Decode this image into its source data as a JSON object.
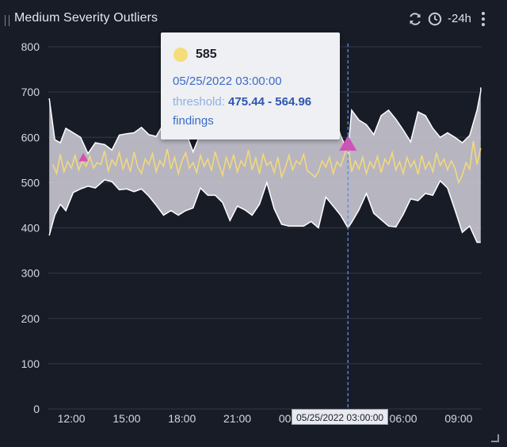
{
  "header": {
    "title": "Medium Severity Outliers",
    "refresh_icon": "refresh-icon",
    "clock_icon": "clock-icon",
    "time_range": "-24h",
    "menu_icon": "kebab-menu-icon"
  },
  "tooltip": {
    "value": "585",
    "timestamp": "05/25/2022 03:00:00",
    "threshold_label": "threshold:",
    "threshold_value": "475.44 - 564.96",
    "link": "findings",
    "dot_color": "#f5dd7a"
  },
  "crosshair_label": "05/25/2022 03:00:00",
  "colors": {
    "background": "#181c26",
    "band_fill": "#c9c7d1",
    "series_line": "#f3d97c",
    "outlier_marker": "#d64fb4",
    "crosshair": "#5b8de0"
  },
  "chart_data": {
    "type": "area",
    "title": "Medium Severity Outliers",
    "xlabel": "",
    "ylabel": "",
    "ylim": [
      0,
      800
    ],
    "y_ticks": [
      "0",
      "100",
      "200",
      "300",
      "400",
      "500",
      "600",
      "700",
      "800"
    ],
    "x_ticks": [
      "12:00",
      "15:00",
      "18:00",
      "21:00",
      "00:00",
      "03:00",
      "06:00",
      "09:00"
    ],
    "x_tick_hours": [
      12,
      15,
      18,
      21,
      24,
      27,
      30,
      33
    ],
    "x_range_hours": [
      10.75,
      34.25
    ],
    "grid": true,
    "band_upper": [
      [
        10.8,
        686
      ],
      [
        11.1,
        595
      ],
      [
        11.4,
        588
      ],
      [
        11.7,
        620
      ],
      [
        12.1,
        610
      ],
      [
        12.5,
        600
      ],
      [
        12.9,
        564
      ],
      [
        13.3,
        588
      ],
      [
        13.8,
        584
      ],
      [
        14.2,
        572
      ],
      [
        14.6,
        605
      ],
      [
        15.0,
        608
      ],
      [
        15.4,
        610
      ],
      [
        15.8,
        622
      ],
      [
        16.2,
        606
      ],
      [
        16.6,
        602
      ],
      [
        17.0,
        630
      ],
      [
        17.4,
        650
      ],
      [
        17.8,
        640
      ],
      [
        18.2,
        612
      ],
      [
        18.6,
        568
      ],
      [
        19.0,
        608
      ],
      [
        19.4,
        636
      ],
      [
        19.8,
        655
      ],
      [
        20.2,
        660
      ],
      [
        20.6,
        640
      ],
      [
        21.0,
        604
      ],
      [
        21.4,
        646
      ],
      [
        21.8,
        664
      ],
      [
        22.2,
        652
      ],
      [
        22.6,
        660
      ],
      [
        23.0,
        615
      ],
      [
        23.4,
        652
      ],
      [
        23.8,
        628
      ],
      [
        24.2,
        602
      ],
      [
        24.6,
        602
      ],
      [
        25.0,
        670
      ],
      [
        25.4,
        656
      ],
      [
        25.8,
        658
      ],
      [
        26.2,
        660
      ],
      [
        26.6,
        604
      ],
      [
        27.0,
        568
      ],
      [
        27.2,
        660
      ],
      [
        27.6,
        638
      ],
      [
        28.0,
        628
      ],
      [
        28.4,
        606
      ],
      [
        28.8,
        648
      ],
      [
        29.2,
        660
      ],
      [
        29.6,
        640
      ],
      [
        30.0,
        616
      ],
      [
        30.4,
        590
      ],
      [
        30.8,
        656
      ],
      [
        31.2,
        648
      ],
      [
        31.6,
        620
      ],
      [
        32.0,
        600
      ],
      [
        32.4,
        610
      ],
      [
        32.8,
        600
      ],
      [
        33.2,
        588
      ],
      [
        33.6,
        604
      ],
      [
        34.0,
        660
      ],
      [
        34.2,
        702
      ],
      [
        34.2,
        710
      ]
    ],
    "band_lower": [
      [
        10.8,
        383
      ],
      [
        11.1,
        428
      ],
      [
        11.4,
        452
      ],
      [
        11.7,
        438
      ],
      [
        12.1,
        478
      ],
      [
        12.5,
        486
      ],
      [
        12.9,
        492
      ],
      [
        13.3,
        488
      ],
      [
        13.8,
        506
      ],
      [
        14.2,
        502
      ],
      [
        14.6,
        484
      ],
      [
        15.0,
        486
      ],
      [
        15.4,
        480
      ],
      [
        15.8,
        486
      ],
      [
        16.2,
        470
      ],
      [
        16.6,
        450
      ],
      [
        17.0,
        428
      ],
      [
        17.4,
        438
      ],
      [
        17.8,
        428
      ],
      [
        18.2,
        438
      ],
      [
        18.6,
        444
      ],
      [
        19.0,
        488
      ],
      [
        19.4,
        472
      ],
      [
        19.8,
        472
      ],
      [
        20.2,
        456
      ],
      [
        20.6,
        416
      ],
      [
        21.0,
        448
      ],
      [
        21.4,
        440
      ],
      [
        21.8,
        428
      ],
      [
        22.2,
        452
      ],
      [
        22.6,
        500
      ],
      [
        23.0,
        442
      ],
      [
        23.4,
        408
      ],
      [
        23.8,
        404
      ],
      [
        24.2,
        404
      ],
      [
        24.6,
        404
      ],
      [
        25.0,
        414
      ],
      [
        25.4,
        400
      ],
      [
        25.8,
        468
      ],
      [
        26.2,
        448
      ],
      [
        26.6,
        428
      ],
      [
        27.0,
        400
      ],
      [
        27.2,
        412
      ],
      [
        27.6,
        440
      ],
      [
        28.0,
        476
      ],
      [
        28.4,
        432
      ],
      [
        28.8,
        418
      ],
      [
        29.2,
        404
      ],
      [
        29.6,
        402
      ],
      [
        30.0,
        430
      ],
      [
        30.4,
        464
      ],
      [
        30.8,
        460
      ],
      [
        31.2,
        476
      ],
      [
        31.6,
        472
      ],
      [
        32.0,
        504
      ],
      [
        32.4,
        488
      ],
      [
        32.8,
        440
      ],
      [
        33.2,
        390
      ],
      [
        33.6,
        404
      ],
      [
        34.0,
        368
      ],
      [
        34.2,
        368
      ]
    ],
    "series": [
      {
        "values": [
          [
            11.0,
            540
          ],
          [
            11.2,
            520
          ],
          [
            11.4,
            562
          ],
          [
            11.6,
            524
          ],
          [
            11.8,
            546
          ],
          [
            12.0,
            532
          ],
          [
            12.2,
            560
          ],
          [
            12.4,
            528
          ],
          [
            12.6,
            548
          ],
          [
            12.8,
            536
          ],
          [
            13.0,
            558
          ],
          [
            13.2,
            532
          ],
          [
            13.4,
            544
          ],
          [
            13.6,
            540
          ],
          [
            13.8,
            570
          ],
          [
            14.0,
            526
          ],
          [
            14.2,
            550
          ],
          [
            14.4,
            538
          ],
          [
            14.6,
            566
          ],
          [
            14.8,
            530
          ],
          [
            15.0,
            552
          ],
          [
            15.2,
            524
          ],
          [
            15.4,
            568
          ],
          [
            15.6,
            534
          ],
          [
            15.8,
            520
          ],
          [
            16.0,
            552
          ],
          [
            16.2,
            540
          ],
          [
            16.4,
            564
          ],
          [
            16.6,
            524
          ],
          [
            16.8,
            548
          ],
          [
            17.0,
            536
          ],
          [
            17.2,
            574
          ],
          [
            17.4,
            530
          ],
          [
            17.6,
            556
          ],
          [
            17.8,
            520
          ],
          [
            18.0,
            548
          ],
          [
            18.2,
            566
          ],
          [
            18.4,
            532
          ],
          [
            18.6,
            544
          ],
          [
            18.8,
            522
          ],
          [
            19.0,
            560
          ],
          [
            19.2,
            536
          ],
          [
            19.4,
            552
          ],
          [
            19.6,
            526
          ],
          [
            19.8,
            568
          ],
          [
            20.0,
            540
          ],
          [
            20.2,
            516
          ],
          [
            20.4,
            556
          ],
          [
            20.6,
            532
          ],
          [
            20.8,
            562
          ],
          [
            21.0,
            524
          ],
          [
            21.2,
            548
          ],
          [
            21.4,
            536
          ],
          [
            21.6,
            572
          ],
          [
            21.8,
            528
          ],
          [
            22.0,
            554
          ],
          [
            22.2,
            520
          ],
          [
            22.4,
            562
          ],
          [
            22.6,
            538
          ],
          [
            22.8,
            546
          ],
          [
            23.0,
            522
          ],
          [
            23.2,
            556
          ],
          [
            23.4,
            512
          ],
          [
            23.6,
            532
          ],
          [
            23.8,
            560
          ],
          [
            24.0,
            528
          ],
          [
            24.2,
            548
          ],
          [
            24.4,
            540
          ],
          [
            24.6,
            562
          ],
          [
            24.8,
            526
          ],
          [
            25.0,
            520
          ],
          [
            25.2,
            512
          ],
          [
            25.4,
            524
          ],
          [
            25.6,
            548
          ],
          [
            25.8,
            534
          ],
          [
            26.0,
            556
          ],
          [
            26.2,
            520
          ],
          [
            26.4,
            546
          ],
          [
            26.6,
            536
          ],
          [
            26.8,
            560
          ],
          [
            27.0,
            585
          ],
          [
            27.2,
            524
          ],
          [
            27.4,
            548
          ],
          [
            27.6,
            530
          ],
          [
            27.8,
            556
          ],
          [
            28.0,
            520
          ],
          [
            28.2,
            546
          ],
          [
            28.4,
            532
          ],
          [
            28.6,
            558
          ],
          [
            28.8,
            522
          ],
          [
            29.0,
            552
          ],
          [
            29.2,
            540
          ],
          [
            29.4,
            566
          ],
          [
            29.6,
            528
          ],
          [
            29.8,
            546
          ],
          [
            30.0,
            520
          ],
          [
            30.2,
            556
          ],
          [
            30.4,
            534
          ],
          [
            30.6,
            548
          ],
          [
            30.8,
            518
          ],
          [
            31.0,
            560
          ],
          [
            31.2,
            530
          ],
          [
            31.4,
            546
          ],
          [
            31.6,
            524
          ],
          [
            31.8,
            566
          ],
          [
            32.0,
            538
          ],
          [
            32.2,
            552
          ],
          [
            32.4,
            528
          ],
          [
            32.6,
            548
          ],
          [
            32.8,
            532
          ],
          [
            33.0,
            500
          ],
          [
            33.2,
            516
          ],
          [
            33.4,
            544
          ],
          [
            33.6,
            530
          ],
          [
            33.8,
            592
          ],
          [
            34.0,
            540
          ],
          [
            34.2,
            576
          ]
        ]
      }
    ],
    "outliers": [
      {
        "x": 12.65,
        "y": 555,
        "size": "small"
      },
      {
        "x": 27.0,
        "y": 585,
        "size": "large"
      }
    ],
    "crosshair_x": 27.0
  }
}
